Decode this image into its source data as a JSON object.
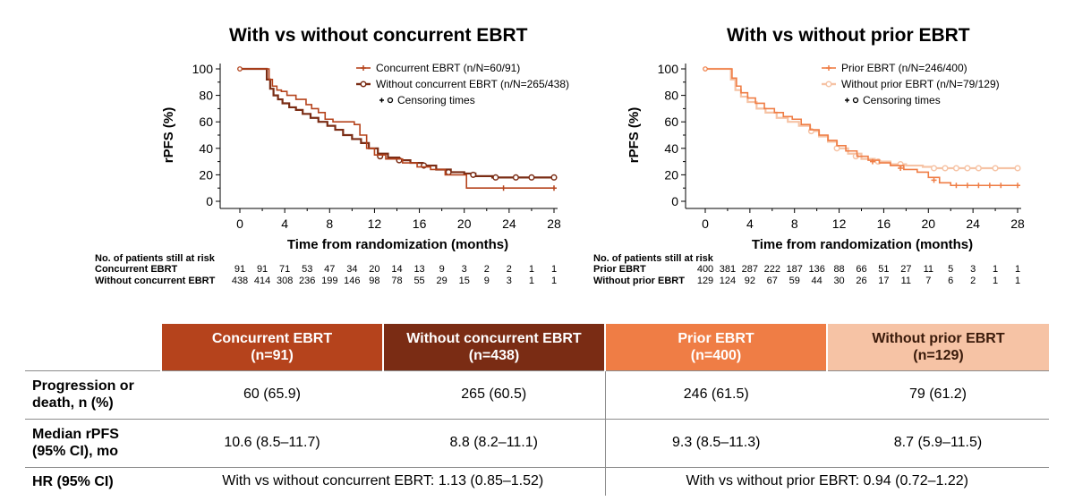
{
  "colors": {
    "concurrent": "#b5431c",
    "without_concurrent": "#7a2c14",
    "prior": "#ef7d45",
    "without_prior": "#f6c3a5"
  },
  "chart_data": [
    {
      "type": "line",
      "subtype": "kaplan-meier step",
      "title": "With vs without concurrent EBRT",
      "xlabel": "Time from randomization (months)",
      "ylabel": "rPFS (%)",
      "xlim": [
        0,
        28
      ],
      "ylim": [
        0,
        100
      ],
      "xticks": [
        0,
        4,
        8,
        12,
        16,
        20,
        24,
        28
      ],
      "yticks": [
        0,
        20,
        40,
        60,
        80,
        100
      ],
      "grid": false,
      "legend_position": "top-right",
      "legend": {
        "entries": [
          "Concurrent EBRT (n/N=60/91)",
          "Without concurrent EBRT (n/N=265/438)"
        ],
        "censor_label": "Censoring times"
      },
      "series": [
        {
          "name": "Concurrent EBRT (n/N=60/91)",
          "color": "#b5431c",
          "x": [
            0,
            2.3,
            2.6,
            2.9,
            3.3,
            3.7,
            4.2,
            5.0,
            5.9,
            6.4,
            7.0,
            7.6,
            8.3,
            9.2,
            10.2,
            10.7,
            11.3,
            12.0,
            13.0,
            14.5,
            15.8,
            17.0,
            18.3,
            19.6,
            20.2,
            22.0,
            28.0
          ],
          "y": [
            100,
            100,
            92,
            87,
            84,
            83,
            80,
            77,
            73,
            70,
            67,
            62,
            60,
            60,
            58,
            50,
            40,
            35,
            32,
            29,
            26,
            24,
            20,
            20,
            10,
            10,
            10
          ],
          "censor_x": [
            23.5,
            28.0
          ],
          "censor_y": [
            10,
            10
          ]
        },
        {
          "name": "Without concurrent EBRT (n/N=265/438)",
          "color": "#7a2c14",
          "x": [
            0,
            2.0,
            2.4,
            2.7,
            3.0,
            3.4,
            3.8,
            4.4,
            5.0,
            5.6,
            6.3,
            7.0,
            7.8,
            8.5,
            9.2,
            10.0,
            10.8,
            11.5,
            12.3,
            13.2,
            14.2,
            15.2,
            16.3,
            17.5,
            18.8,
            20.0,
            21.0,
            22.5,
            28.0
          ],
          "y": [
            100,
            100,
            92,
            85,
            80,
            77,
            74,
            71,
            69,
            66,
            63,
            60,
            57,
            54,
            50,
            47,
            44,
            40,
            36,
            33,
            31,
            29,
            27,
            24,
            22,
            21,
            19,
            18,
            18
          ],
          "censor_x": [
            12.5,
            14.2,
            16.4,
            18.6,
            20.8,
            22.8,
            24.6,
            26.0,
            28.0
          ],
          "censor_y": [
            34,
            31,
            27,
            22,
            20,
            18,
            18,
            18,
            18
          ]
        }
      ],
      "at_risk": {
        "header": "No. of patients still at risk",
        "rows": [
          {
            "label": "Concurrent EBRT",
            "values": [
              "91",
              "91",
              "71",
              "53",
              "47",
              "34",
              "20",
              "14",
              "13",
              "9",
              "3",
              "2",
              "2",
              "1",
              "1"
            ]
          },
          {
            "label": "Without concurrent EBRT",
            "values": [
              "438",
              "414",
              "308",
              "236",
              "199",
              "146",
              "98",
              "78",
              "55",
              "29",
              "15",
              "9",
              "3",
              "1",
              "1"
            ]
          }
        ]
      }
    },
    {
      "type": "line",
      "subtype": "kaplan-meier step",
      "title": "With vs without prior EBRT",
      "xlabel": "Time from randomization (months)",
      "ylabel": "rPFS (%)",
      "xlim": [
        0,
        28
      ],
      "ylim": [
        0,
        100
      ],
      "xticks": [
        0,
        4,
        8,
        12,
        16,
        20,
        24,
        28
      ],
      "yticks": [
        0,
        20,
        40,
        60,
        80,
        100
      ],
      "grid": false,
      "legend_position": "top-right",
      "legend": {
        "entries": [
          "Prior EBRT (n/N=246/400)",
          "Without prior EBRT (n/N=79/129)"
        ],
        "censor_label": "Censoring times"
      },
      "series": [
        {
          "name": "Prior EBRT (n/N=246/400)",
          "color": "#ef7d45",
          "x": [
            0,
            2.0,
            2.4,
            2.8,
            3.2,
            3.8,
            4.5,
            5.3,
            6.2,
            7.0,
            7.8,
            8.6,
            9.4,
            10.2,
            11.0,
            11.8,
            12.6,
            13.6,
            14.6,
            15.6,
            16.6,
            17.8,
            19.0,
            20.0,
            21.0,
            22.0,
            28.0
          ],
          "y": [
            100,
            100,
            93,
            87,
            82,
            78,
            74,
            70,
            67,
            64,
            62,
            58,
            54,
            50,
            46,
            42,
            38,
            34,
            31,
            29,
            27,
            24,
            22,
            18,
            14,
            12,
            12
          ],
          "censor_x": [
            15.0,
            17.5,
            20.5,
            22.5,
            23.5,
            24.5,
            25.5,
            26.5,
            28.0
          ],
          "censor_y": [
            30,
            25,
            16,
            12,
            12,
            12,
            12,
            12,
            12
          ]
        },
        {
          "name": "Without prior EBRT (n/N=79/129)",
          "color": "#f6c3a5",
          "x": [
            0,
            2.0,
            2.3,
            2.7,
            3.2,
            3.8,
            4.6,
            5.4,
            6.4,
            7.4,
            8.4,
            9.4,
            10.2,
            11.0,
            11.8,
            12.8,
            14.0,
            15.2,
            16.6,
            18.0,
            19.5,
            20.5,
            28.0
          ],
          "y": [
            100,
            100,
            92,
            84,
            79,
            75,
            70,
            67,
            63,
            60,
            57,
            53,
            49,
            45,
            40,
            36,
            32,
            30,
            28,
            27,
            26,
            25,
            25
          ],
          "censor_x": [
            9.5,
            11.8,
            13.5,
            15.5,
            17.5,
            20.5,
            21.5,
            22.5,
            23.5,
            24.5,
            26.0,
            28.0
          ],
          "censor_y": [
            53,
            40,
            34,
            30,
            28,
            25,
            25,
            25,
            25,
            25,
            25,
            25
          ]
        }
      ],
      "at_risk": {
        "header": "No. of patients still at risk",
        "rows": [
          {
            "label": "Prior EBRT",
            "values": [
              "400",
              "381",
              "287",
              "222",
              "187",
              "136",
              "88",
              "66",
              "51",
              "27",
              "11",
              "5",
              "3",
              "1",
              "1"
            ]
          },
          {
            "label": "Without prior EBRT",
            "values": [
              "129",
              "124",
              "92",
              "67",
              "59",
              "44",
              "30",
              "26",
              "17",
              "11",
              "7",
              "6",
              "2",
              "1",
              "1"
            ]
          }
        ]
      }
    }
  ],
  "table": {
    "headers": [
      {
        "line1": "Concurrent EBRT",
        "line2": "(n=91)"
      },
      {
        "line1": "Without concurrent EBRT",
        "line2": "(n=438)"
      },
      {
        "line1": "Prior EBRT",
        "line2": "(n=400)"
      },
      {
        "line1": "Without prior EBRT",
        "line2": "(n=129)"
      }
    ],
    "rows": [
      {
        "label_line1": "Progression or",
        "label_line2": "death, n (%)",
        "values": [
          "60 (65.9)",
          "265 (60.5)",
          "246 (61.5)",
          "79 (61.2)"
        ]
      },
      {
        "label_line1": "Median rPFS",
        "label_line2": "(95% CI), mo",
        "values": [
          "10.6 (8.5–11.7)",
          "8.8 (8.2–11.1)",
          "9.3 (8.5–11.3)",
          "8.7 (5.9–11.5)"
        ]
      }
    ],
    "hr_row": {
      "label": "HR (95% CI)",
      "left": "With vs without concurrent EBRT: 1.13 (0.85–1.52)",
      "right": "With vs without prior EBRT: 0.94 (0.72–1.22)"
    }
  }
}
